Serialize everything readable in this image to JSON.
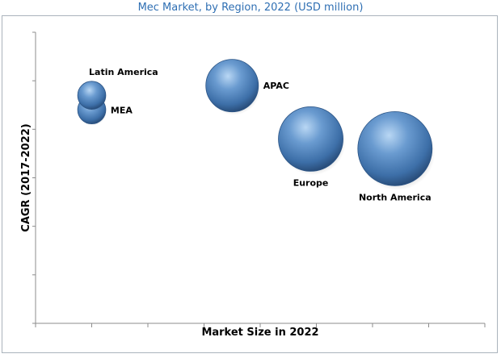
{
  "chart_data": {
    "type": "bubble",
    "title": "Mec Market, by Region, 2022 (USD million)",
    "xlabel": "Market Size in 2022",
    "ylabel": "CAGR (2017-2022)",
    "xlim": [
      0,
      8
    ],
    "ylim": [
      0,
      6
    ],
    "grid": false,
    "legend": "none",
    "bubble_color": "#3f78b5",
    "series": [
      {
        "name": "Latin America",
        "x": 1.0,
        "y": 4.7,
        "size": 1.0
      },
      {
        "name": "MEA",
        "x": 1.0,
        "y": 4.4,
        "size": 1.0
      },
      {
        "name": "APAC",
        "x": 3.5,
        "y": 4.9,
        "size": 3.5
      },
      {
        "name": "Europe",
        "x": 4.9,
        "y": 3.8,
        "size": 5.3
      },
      {
        "name": "North America",
        "x": 6.4,
        "y": 3.6,
        "size": 7.0
      }
    ]
  }
}
